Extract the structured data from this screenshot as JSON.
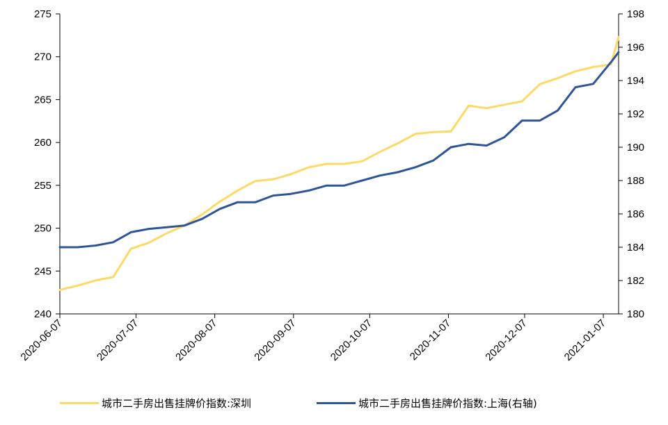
{
  "chart_data": {
    "type": "line",
    "title": "",
    "xlabel": "",
    "ylabel_left": "",
    "ylabel_right": "",
    "x_tick_labels": [
      "2020-06-07",
      "2020-07-07",
      "2020-08-07",
      "2020-09-07",
      "2020-10-07",
      "2020-11-07",
      "2020-12-07",
      "2021-01-07"
    ],
    "y_left": {
      "min": 240,
      "max": 275,
      "step": 5,
      "ticks": [
        "240",
        "245",
        "250",
        "255",
        "260",
        "265",
        "270",
        "275"
      ]
    },
    "y_right": {
      "min": 180,
      "max": 198,
      "step": 2,
      "ticks": [
        "180",
        "182",
        "184",
        "186",
        "188",
        "190",
        "192",
        "194",
        "196",
        "198"
      ]
    },
    "grid": false,
    "legend_position": "bottom",
    "x": [
      "2020-06-07",
      "2020-06-14",
      "2020-06-21",
      "2020-06-28",
      "2020-07-05",
      "2020-07-12",
      "2020-07-19",
      "2020-07-26",
      "2020-08-02",
      "2020-08-09",
      "2020-08-16",
      "2020-08-23",
      "2020-08-30",
      "2020-09-06",
      "2020-09-13",
      "2020-09-20",
      "2020-09-27",
      "2020-10-04",
      "2020-10-11",
      "2020-10-18",
      "2020-10-25",
      "2020-11-01",
      "2020-11-08",
      "2020-11-15",
      "2020-11-22",
      "2020-11-29",
      "2020-12-06",
      "2020-12-13",
      "2020-12-20",
      "2020-12-27",
      "2021-01-03",
      "2021-01-10",
      "2021-01-13"
    ],
    "series": [
      {
        "name": "城市二手房出售挂牌价指数:深圳",
        "axis": "left",
        "color": "#FFD966",
        "values": [
          242.8,
          243.3,
          243.9,
          244.3,
          247.6,
          248.3,
          249.4,
          250.3,
          251.6,
          253.1,
          254.4,
          255.5,
          255.7,
          256.3,
          257.1,
          257.5,
          257.5,
          257.8,
          258.9,
          259.9,
          261.0,
          261.2,
          261.3,
          264.3,
          264.0,
          264.4,
          264.8,
          266.8,
          267.5,
          268.3,
          268.8,
          269.1,
          272.3
        ]
      },
      {
        "name": "城市二手房出售挂牌价指数:上海(右轴)",
        "axis": "right",
        "color": "#2F5597",
        "values": [
          184.0,
          184.0,
          184.1,
          184.3,
          184.9,
          185.1,
          185.2,
          185.3,
          185.7,
          186.3,
          186.7,
          186.7,
          187.1,
          187.2,
          187.4,
          187.7,
          187.7,
          188.0,
          188.3,
          188.5,
          188.8,
          189.2,
          190.0,
          190.2,
          190.1,
          190.6,
          191.6,
          191.6,
          192.2,
          193.6,
          193.8,
          195.1,
          195.7
        ]
      }
    ]
  }
}
